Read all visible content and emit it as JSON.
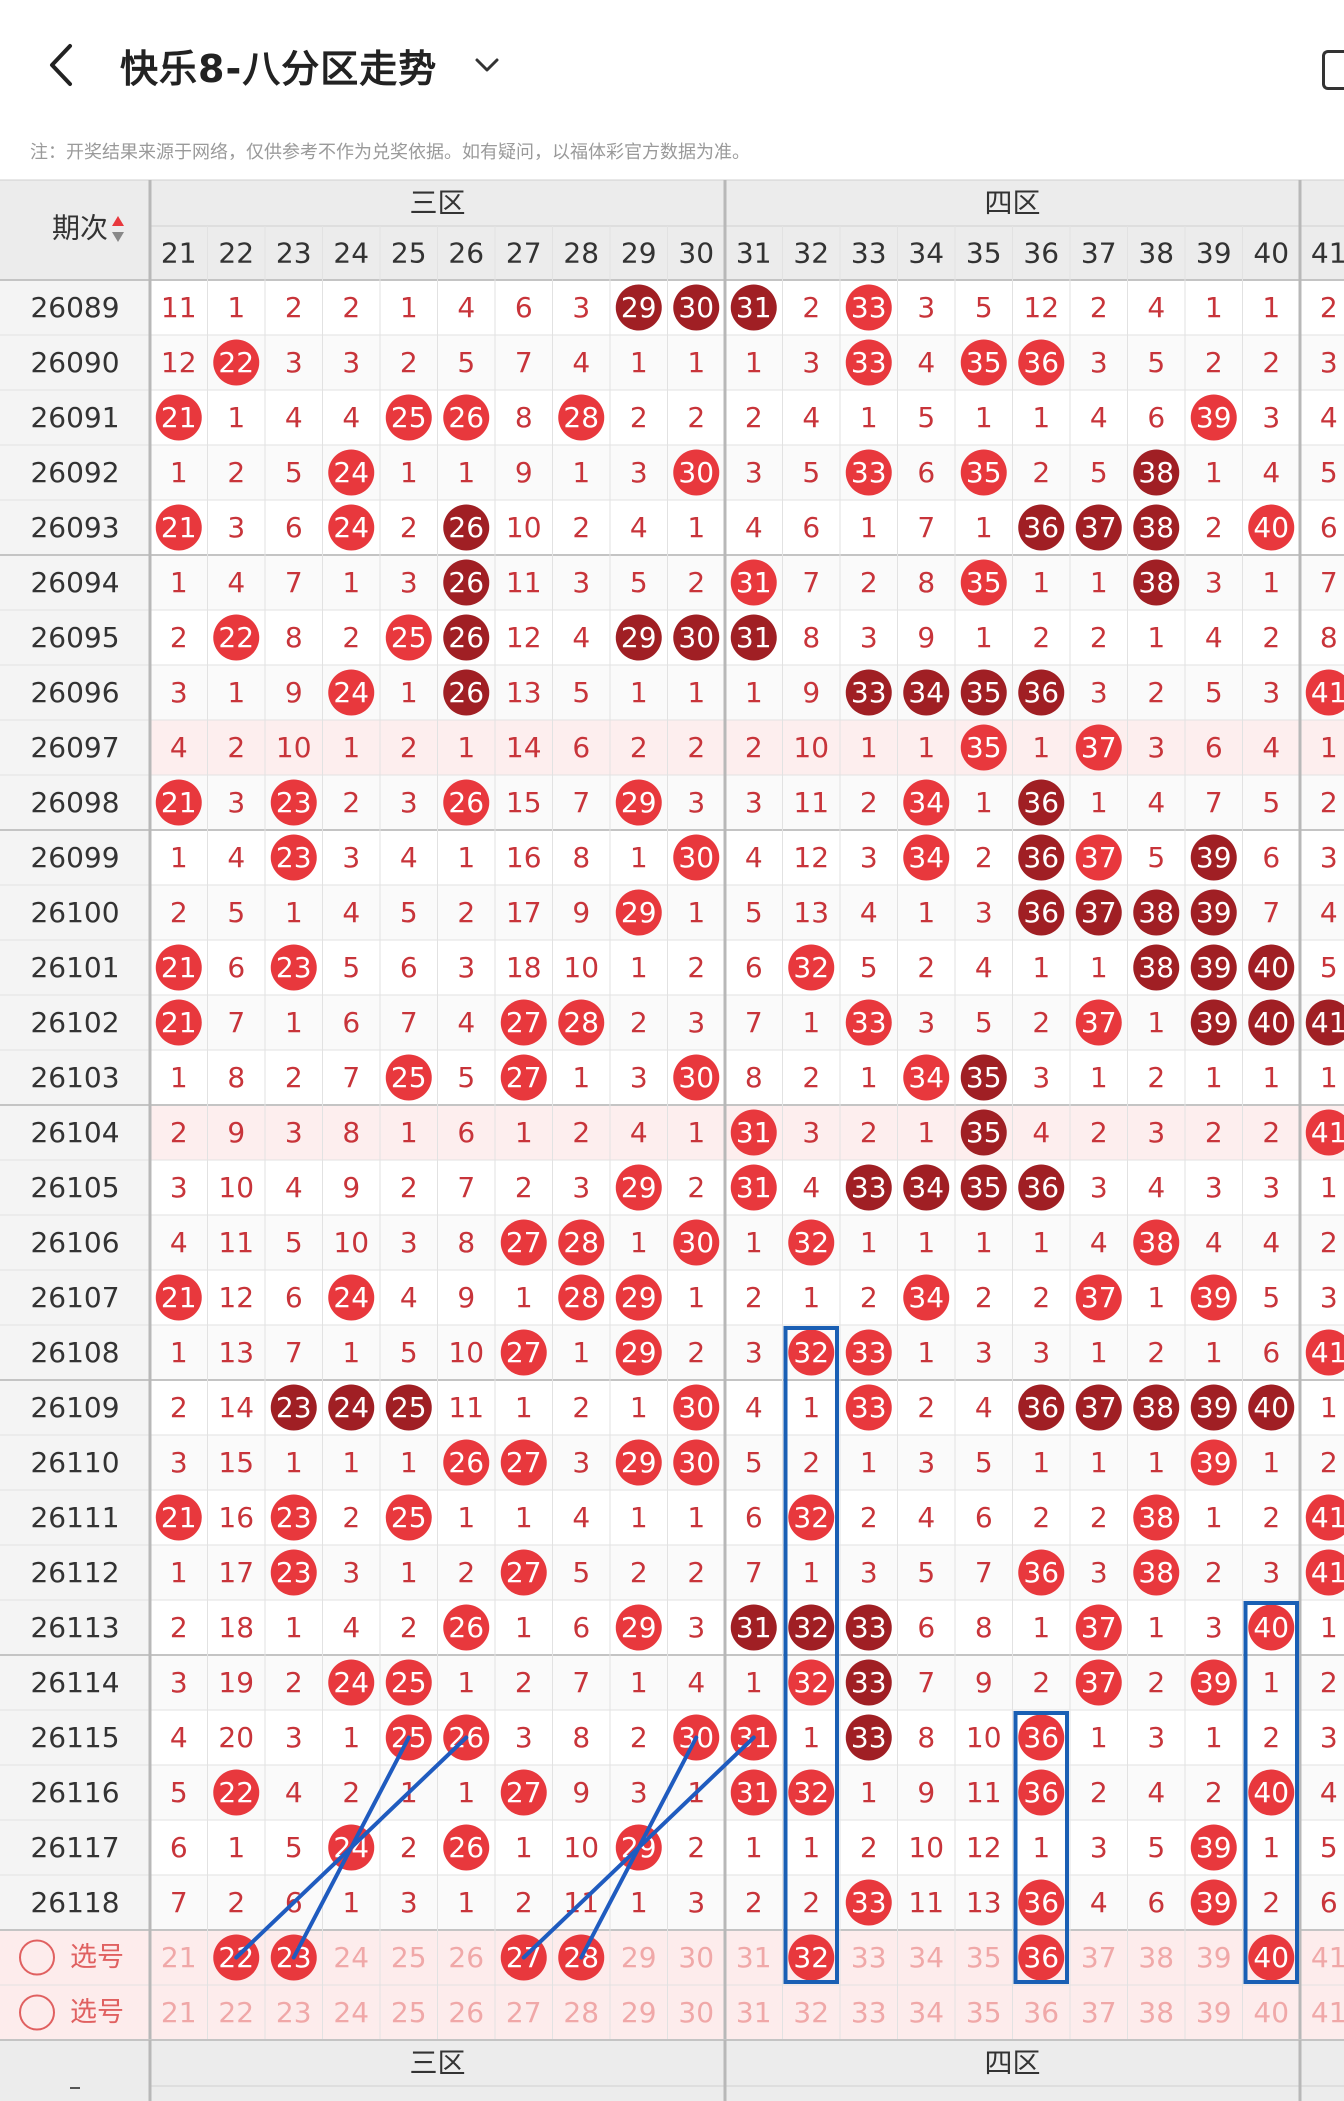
{
  "header": {
    "title": "快乐8-八分区走势",
    "note": "注：开奖结果来源于网络，仅供参考不作为兑奖依据。如有疑问，以福体彩官方数据为准。"
  },
  "table": {
    "period_header": "期次",
    "zones": [
      {
        "name": "三区",
        "from": 21,
        "to": 30
      },
      {
        "name": "四区",
        "from": 31,
        "to": 40
      }
    ],
    "columns": [
      21,
      22,
      23,
      24,
      25,
      26,
      27,
      28,
      29,
      30,
      31,
      32,
      33,
      34,
      35,
      36,
      37,
      38,
      39,
      40,
      41
    ],
    "rows": [
      {
        "period": "26089",
        "cells": [
          11,
          1,
          2,
          2,
          1,
          4,
          6,
          3,
          "d",
          "d",
          "d",
          2,
          "r",
          3,
          5,
          12,
          2,
          4,
          1,
          1,
          2
        ]
      },
      {
        "period": "26090",
        "cells": [
          12,
          "r",
          3,
          3,
          2,
          5,
          7,
          4,
          1,
          1,
          1,
          3,
          "r",
          4,
          "r",
          "r",
          3,
          5,
          2,
          2,
          3
        ]
      },
      {
        "period": "26091",
        "cells": [
          "r",
          1,
          4,
          4,
          "r",
          "r",
          8,
          "r",
          2,
          2,
          2,
          4,
          1,
          5,
          1,
          1,
          4,
          6,
          "r",
          3,
          4
        ]
      },
      {
        "period": "26092",
        "cells": [
          1,
          2,
          5,
          "r",
          1,
          1,
          9,
          1,
          3,
          "r",
          3,
          5,
          "r",
          6,
          "r",
          2,
          5,
          "d",
          1,
          4,
          5
        ]
      },
      {
        "period": "26093",
        "cells": [
          "r",
          3,
          6,
          "r",
          2,
          "d",
          10,
          2,
          4,
          1,
          4,
          6,
          1,
          7,
          1,
          "d",
          "d",
          "d",
          2,
          "r",
          6
        ]
      },
      {
        "period": "26094",
        "cells": [
          1,
          4,
          7,
          1,
          3,
          "d",
          11,
          3,
          5,
          2,
          "r",
          7,
          2,
          8,
          "r",
          1,
          1,
          "d",
          3,
          1,
          7
        ]
      },
      {
        "period": "26095",
        "cells": [
          2,
          "r",
          8,
          2,
          "r",
          "d",
          12,
          4,
          "d",
          "d",
          "d",
          8,
          3,
          9,
          1,
          2,
          2,
          1,
          4,
          2,
          8
        ]
      },
      {
        "period": "26096",
        "cells": [
          3,
          1,
          9,
          "r",
          1,
          "d",
          13,
          5,
          1,
          1,
          1,
          9,
          "d",
          "d",
          "d",
          "d",
          3,
          2,
          5,
          3,
          "r"
        ]
      },
      {
        "period": "26097",
        "cells": [
          4,
          2,
          10,
          1,
          2,
          1,
          14,
          6,
          2,
          2,
          2,
          10,
          1,
          1,
          "r",
          1,
          "r",
          3,
          6,
          4,
          1
        ]
      },
      {
        "period": "26098",
        "cells": [
          "r",
          3,
          "r",
          2,
          3,
          "r",
          15,
          7,
          "r",
          3,
          3,
          11,
          2,
          "r",
          1,
          "d",
          1,
          4,
          7,
          5,
          2
        ]
      },
      {
        "period": "26099",
        "cells": [
          1,
          4,
          "r",
          3,
          4,
          1,
          16,
          8,
          1,
          "r",
          4,
          12,
          3,
          "r",
          2,
          "d",
          "r",
          5,
          "d",
          6,
          3
        ]
      },
      {
        "period": "26100",
        "cells": [
          2,
          5,
          1,
          4,
          5,
          2,
          17,
          9,
          "r",
          1,
          5,
          13,
          4,
          1,
          3,
          "d",
          "d",
          "d",
          "d",
          7,
          4
        ]
      },
      {
        "period": "26101",
        "cells": [
          "r",
          6,
          "r",
          5,
          6,
          3,
          18,
          10,
          1,
          2,
          6,
          "r",
          5,
          2,
          4,
          1,
          1,
          "d",
          "d",
          "d",
          5
        ]
      },
      {
        "period": "26102",
        "cells": [
          "r",
          7,
          1,
          6,
          7,
          4,
          "r",
          "r",
          2,
          3,
          7,
          1,
          "r",
          3,
          5,
          2,
          "r",
          1,
          "d",
          "d",
          "d"
        ]
      },
      {
        "period": "26103",
        "cells": [
          1,
          8,
          2,
          7,
          "r",
          5,
          "r",
          1,
          3,
          "r",
          8,
          2,
          1,
          "r",
          "d",
          3,
          1,
          2,
          1,
          1,
          1
        ]
      },
      {
        "period": "26104",
        "cells": [
          2,
          9,
          3,
          8,
          1,
          6,
          1,
          2,
          4,
          1,
          "r",
          3,
          2,
          1,
          "d",
          4,
          2,
          3,
          2,
          2,
          "r"
        ]
      },
      {
        "period": "26105",
        "cells": [
          3,
          10,
          4,
          9,
          2,
          7,
          2,
          3,
          "r",
          2,
          "r",
          4,
          "d",
          "d",
          "d",
          "d",
          3,
          4,
          3,
          3,
          1
        ]
      },
      {
        "period": "26106",
        "cells": [
          4,
          11,
          5,
          10,
          3,
          8,
          "r",
          "r",
          1,
          "r",
          1,
          "r",
          1,
          1,
          1,
          1,
          4,
          "r",
          4,
          4,
          2
        ]
      },
      {
        "period": "26107",
        "cells": [
          "r",
          12,
          6,
          "r",
          4,
          9,
          1,
          "r",
          "r",
          1,
          2,
          1,
          2,
          "r",
          2,
          2,
          "r",
          1,
          "r",
          5,
          3
        ]
      },
      {
        "period": "26108",
        "cells": [
          1,
          13,
          7,
          1,
          5,
          10,
          "r",
          1,
          "r",
          2,
          3,
          "r",
          "r",
          1,
          3,
          3,
          1,
          2,
          1,
          6,
          "r"
        ]
      },
      {
        "period": "26109",
        "cells": [
          2,
          14,
          "d",
          "d",
          "d",
          11,
          1,
          2,
          1,
          "r",
          4,
          1,
          "r",
          2,
          4,
          "d",
          "d",
          "d",
          "d",
          "d",
          1
        ]
      },
      {
        "period": "26110",
        "cells": [
          3,
          15,
          1,
          1,
          1,
          "r",
          "r",
          3,
          "r",
          "r",
          5,
          2,
          1,
          3,
          5,
          1,
          1,
          1,
          "r",
          1,
          2
        ]
      },
      {
        "period": "26111",
        "cells": [
          "r",
          16,
          "r",
          2,
          "r",
          1,
          1,
          4,
          1,
          1,
          6,
          "r",
          2,
          4,
          6,
          2,
          2,
          "r",
          1,
          2,
          "r"
        ]
      },
      {
        "period": "26112",
        "cells": [
          1,
          17,
          "r",
          3,
          1,
          2,
          "r",
          5,
          2,
          2,
          7,
          1,
          3,
          5,
          7,
          "r",
          3,
          "r",
          2,
          3,
          "r"
        ]
      },
      {
        "period": "26113",
        "cells": [
          2,
          18,
          1,
          4,
          2,
          "r",
          1,
          6,
          "r",
          3,
          "d",
          "d",
          "d",
          6,
          8,
          1,
          "r",
          1,
          3,
          "r",
          1
        ]
      },
      {
        "period": "26114",
        "cells": [
          3,
          19,
          2,
          "r",
          "r",
          1,
          2,
          7,
          1,
          4,
          1,
          "r",
          "d",
          7,
          9,
          2,
          "r",
          2,
          "r",
          1,
          2
        ]
      },
      {
        "period": "26115",
        "cells": [
          4,
          20,
          3,
          1,
          "r",
          "r",
          3,
          8,
          2,
          "r",
          "r",
          1,
          "d",
          8,
          10,
          "r",
          1,
          3,
          1,
          2,
          3
        ]
      },
      {
        "period": "26116",
        "cells": [
          5,
          "r",
          4,
          2,
          1,
          1,
          "r",
          9,
          3,
          1,
          "r",
          "r",
          1,
          9,
          11,
          "r",
          2,
          4,
          2,
          "r",
          4
        ]
      },
      {
        "period": "26117",
        "cells": [
          6,
          1,
          5,
          "r",
          2,
          "r",
          1,
          10,
          "r",
          2,
          1,
          1,
          2,
          10,
          12,
          1,
          3,
          5,
          "r",
          1,
          5
        ]
      },
      {
        "period": "26118",
        "cells": [
          7,
          2,
          6,
          1,
          3,
          1,
          2,
          11,
          1,
          3,
          2,
          2,
          "r",
          11,
          13,
          "r",
          4,
          6,
          "r",
          2,
          6
        ]
      }
    ],
    "select_label": "选号",
    "selected_row1": [
      22,
      23,
      27,
      28,
      32,
      36,
      40
    ],
    "fade_period_rows": [
      "26097",
      "26104"
    ]
  },
  "colors": {
    "red_ball": "#e8383d",
    "dark_ball": "#a01f24",
    "digit": "#c8343a",
    "frame_blue": "#1a5fb4",
    "line_blue": "#1f5bbf"
  }
}
